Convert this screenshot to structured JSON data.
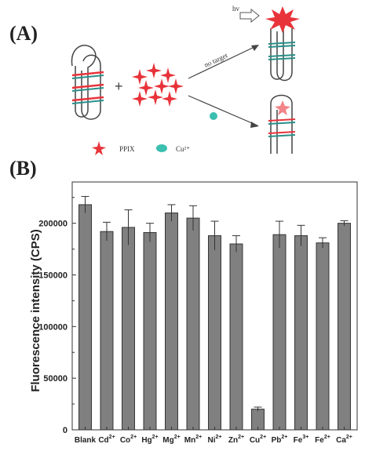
{
  "panels": {
    "a_label": "(A)",
    "b_label": "(B)"
  },
  "scheme": {
    "no_target_label": "no target",
    "hv_label": "hv",
    "legend_ppix": "PPIX",
    "legend_cu": "Cu²⁺",
    "colors": {
      "ppix": "#e8333a",
      "cu": "#3bbfb0",
      "dna": "#444444",
      "pair": "#2a8f88"
    }
  },
  "chart_data": {
    "type": "bar",
    "ylabel": "Fluorescence intensity (CPS)",
    "ylim": [
      0,
      240000
    ],
    "yticks": [
      "0",
      "50000",
      "100000",
      "150000",
      "200000"
    ],
    "ytick_values": [
      0,
      50000,
      100000,
      150000,
      200000
    ],
    "categories": [
      {
        "base": "Blank",
        "sup": ""
      },
      {
        "base": "Cd",
        "sup": "2+"
      },
      {
        "base": "Co",
        "sup": "2+"
      },
      {
        "base": "Hg",
        "sup": "2+"
      },
      {
        "base": "Mg",
        "sup": "2+"
      },
      {
        "base": "Mn",
        "sup": "2+"
      },
      {
        "base": "Ni",
        "sup": "2+"
      },
      {
        "base": "Zn",
        "sup": "2+"
      },
      {
        "base": "Cu",
        "sup": "2+"
      },
      {
        "base": "Pb",
        "sup": "2+"
      },
      {
        "base": "Fe",
        "sup": "3+"
      },
      {
        "base": "Fe",
        "sup": "2+"
      },
      {
        "base": "Ca",
        "sup": "2+"
      }
    ],
    "values": [
      218000,
      192000,
      196000,
      191000,
      210000,
      205000,
      188000,
      180000,
      20000,
      189000,
      188000,
      181000,
      200000
    ],
    "errors": [
      8000,
      9000,
      17000,
      9000,
      8000,
      12000,
      14000,
      8000,
      2000,
      13000,
      10000,
      5000,
      2500
    ],
    "bar_color": "#808080",
    "grid": false,
    "legend": "none"
  }
}
